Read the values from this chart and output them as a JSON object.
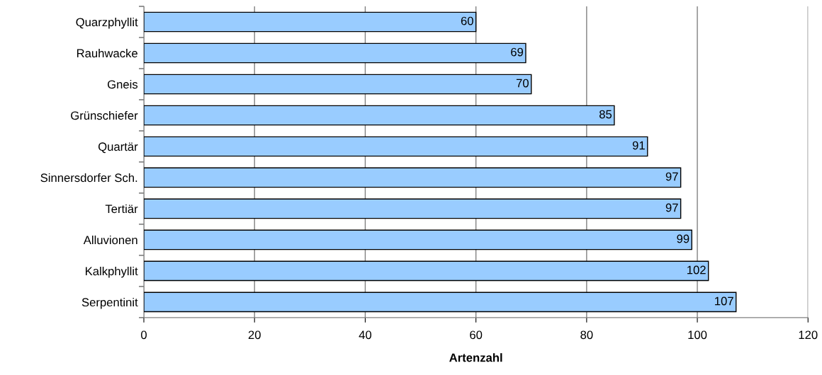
{
  "chart_data": {
    "type": "bar",
    "orientation": "horizontal",
    "xlabel": "Artenzahl",
    "categories": [
      "Quarzphyllit",
      "Rauhwacke",
      "Gneis",
      "Grünschiefer",
      "Quartär",
      "Sinnersdorfer Sch.",
      "Tertiär",
      "Alluvionen",
      "Kalkphyllit",
      "Serpentinit"
    ],
    "values": [
      60,
      69,
      70,
      85,
      91,
      97,
      97,
      99,
      102,
      107
    ],
    "color": "#99ccff",
    "xlim": [
      0,
      120
    ],
    "xticks": [
      0,
      20,
      40,
      60,
      80,
      100,
      120
    ],
    "grid": "x",
    "data_labels": true
  }
}
